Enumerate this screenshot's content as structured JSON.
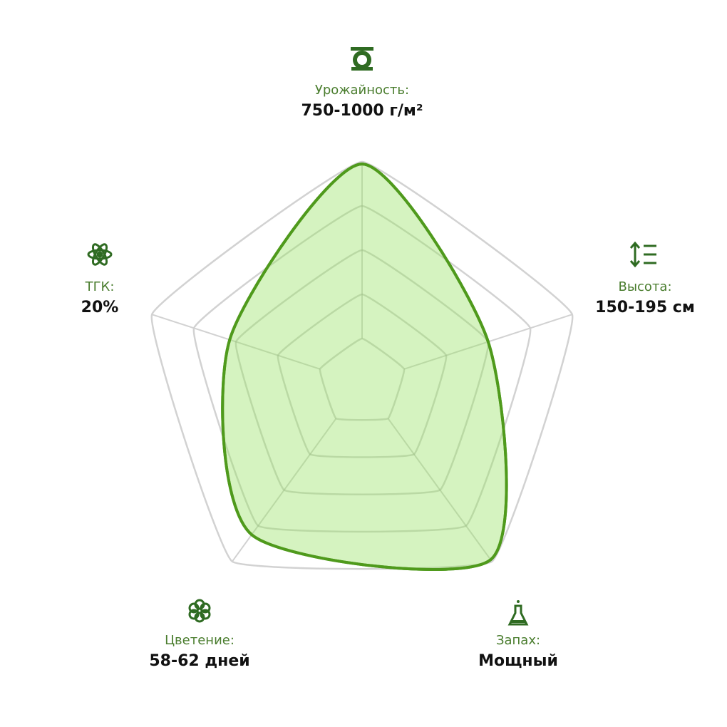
{
  "chart_data": {
    "type": "radar",
    "categories": [
      "Урожайность:",
      "Высота:",
      "Запах:",
      "Цветение:",
      "ТГК:"
    ],
    "value_labels": [
      "750-1000 г/м²",
      "150-195 см",
      "Мощный",
      "58-62 дней",
      "20%"
    ],
    "values": [
      99,
      60,
      99,
      85,
      63
    ],
    "rlim": [
      0,
      100
    ],
    "rticks": [
      20,
      40,
      60,
      80,
      100
    ],
    "grid": true,
    "color": "#4f9a1c",
    "fill": "#d3f2bd"
  }
}
